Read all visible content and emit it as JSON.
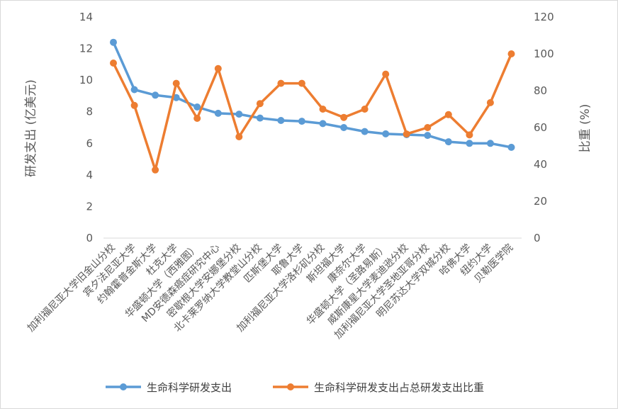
{
  "chart_data": {
    "type": "line",
    "title": "",
    "categories": [
      "加利福尼亚大学旧金山分校",
      "宾夕法尼亚大学",
      "约翰霍普金斯大学",
      "杜克大学",
      "华盛顿大学（西雅图）",
      "MD安德森癌症研究中心",
      "密歇根大学安娜堡分校",
      "北卡莱罗纳大学教堂山分校",
      "匹斯堡大学",
      "耶鲁大学",
      "加利福尼亚大学洛杉矶分校",
      "斯坦福大学",
      "康奈尔大学",
      "华盛顿大学（圣路易斯）",
      "威斯康星大学麦迪逊分校",
      "加利福尼亚大学圣地亚哥分校",
      "明尼苏达大学双城分校",
      "哈佛大学",
      "纽约大学",
      "贝勒医学院"
    ],
    "series": [
      {
        "name": "生命科学研发支出",
        "axis": "left",
        "color": "#5B9BD5",
        "values": [
          12.4,
          9.4,
          9.05,
          8.9,
          8.3,
          7.9,
          7.85,
          7.6,
          7.45,
          7.4,
          7.25,
          7.0,
          6.75,
          6.6,
          6.55,
          6.5,
          6.1,
          6.0,
          6.0,
          5.75
        ]
      },
      {
        "name": "生命科学研发支出占总研发支出比重",
        "axis": "right",
        "color": "#ED7D31",
        "values": [
          95,
          72,
          37,
          84,
          65,
          92,
          55,
          73,
          84,
          84,
          70,
          65.5,
          70,
          89,
          56.5,
          60,
          67,
          56,
          73.5,
          100
        ]
      }
    ],
    "ylabel": "研发支出 (亿美元)",
    "ylim": [
      0,
      14
    ],
    "yticks": [
      0,
      2,
      4,
      6,
      8,
      10,
      12,
      14
    ],
    "y2label": "比重 (%)",
    "y2lim": [
      0,
      120
    ],
    "y2ticks": [
      0,
      20,
      40,
      60,
      80,
      100,
      120
    ],
    "grid": false,
    "legend_position": "bottom"
  }
}
